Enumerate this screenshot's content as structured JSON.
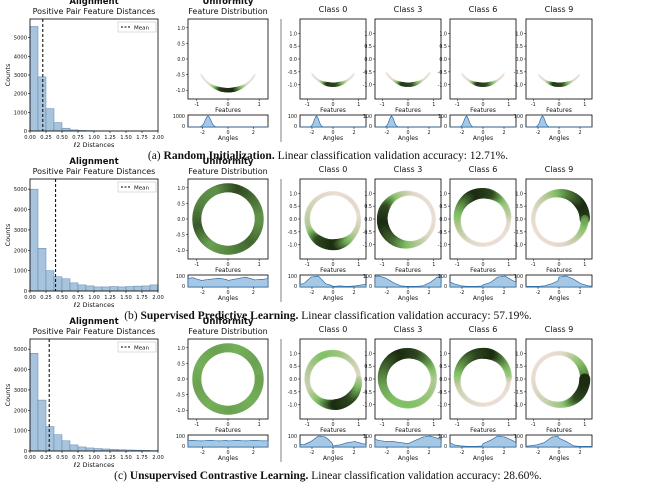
{
  "chart_data": [
    {
      "type": "figure-row",
      "alignment": {
        "title": "Alignment",
        "subtitle": "Positive Pair Feature Distances",
        "xlabel": "ℓ2 Distances",
        "ylabel": "Counts",
        "legend": "Mean",
        "mean": 0.2,
        "bin_width": 0.125,
        "counts": [
          5600,
          2900,
          1200,
          450,
          150,
          60,
          30,
          20,
          10,
          10,
          5,
          5,
          5,
          5,
          5,
          5
        ],
        "xlim": [
          0,
          2
        ],
        "ylim": [
          0,
          6000
        ],
        "xticks": [
          "0.00",
          "0.25",
          "0.50",
          "0.75",
          "1.00",
          "1.25",
          "1.50",
          "1.75",
          "2.00"
        ],
        "yticks": [
          "0",
          "1000",
          "2000",
          "3000",
          "4000",
          "5000"
        ]
      },
      "uniformity": {
        "title": "Uniformity",
        "subtitle": "Feature Distribution",
        "kde_max": "1000",
        "arc": {
          "start_deg": 210,
          "end_deg": 330
        },
        "density": [
          0.02,
          0.1,
          0.95,
          1.0,
          0.1,
          0.02
        ]
      },
      "classes": [
        {
          "label": "Class 0",
          "arc": {
            "start_deg": 215,
            "end_deg": 325
          },
          "density": [
            0.02,
            0.1,
            0.95,
            0.9,
            0.1,
            0.02
          ]
        },
        {
          "label": "Class 3",
          "arc": {
            "start_deg": 212,
            "end_deg": 328
          },
          "density": [
            0.02,
            0.1,
            0.95,
            0.9,
            0.1,
            0.02
          ]
        },
        {
          "label": "Class 6",
          "arc": {
            "start_deg": 215,
            "end_deg": 325
          },
          "density": [
            0.02,
            0.1,
            0.95,
            0.9,
            0.1,
            0.02
          ]
        },
        {
          "label": "Class 9",
          "arc": {
            "start_deg": 218,
            "end_deg": 322
          },
          "density": [
            0.02,
            0.1,
            0.95,
            0.9,
            0.1,
            0.02
          ]
        }
      ],
      "class_kde_max": "100",
      "caption": {
        "prefix": "(a) ",
        "bold": "Random Initialization.",
        "text": " Linear classification validation accuracy: 12.71%."
      }
    },
    {
      "type": "figure-row",
      "alignment": {
        "title": "Alignment",
        "subtitle": "Positive Pair Feature Distances",
        "xlabel": "ℓ2 Distances",
        "ylabel": "Counts",
        "legend": "Mean",
        "mean": 0.4,
        "bin_width": 0.125,
        "counts": [
          5000,
          2100,
          1000,
          700,
          600,
          400,
          300,
          250,
          200,
          200,
          220,
          200,
          220,
          240,
          250,
          300
        ],
        "xlim": [
          0,
          2
        ],
        "ylim": [
          0,
          5500
        ],
        "xticks": [
          "0.00",
          "0.25",
          "0.50",
          "0.75",
          "1.00",
          "1.25",
          "1.50",
          "1.75",
          "2.00"
        ],
        "yticks": [
          "0",
          "1000",
          "2000",
          "3000",
          "4000",
          "5000"
        ]
      },
      "uniformity": {
        "title": "Uniformity",
        "subtitle": "Feature Distribution",
        "kde_max": "100",
        "arc": {
          "start_deg": 0,
          "end_deg": 360
        },
        "density": [
          0.6,
          0.75,
          0.9,
          0.65,
          0.7,
          0.85,
          0.6,
          0.7,
          0.8,
          0.65
        ]
      },
      "classes": [
        {
          "label": "Class 0",
          "arc": {
            "start_deg": 0,
            "end_deg": 360
          },
          "density": [
            0.05,
            0.1,
            0.05,
            0.1,
            0.2,
            0.3,
            0.9,
            1.0,
            0.3,
            0.1
          ]
        },
        {
          "label": "Class 3",
          "arc": {
            "start_deg": 0,
            "end_deg": 360
          },
          "density": [
            0.05,
            0.05,
            0.1,
            0.4,
            0.9,
            1.0,
            0.8,
            0.4,
            0.1,
            0.05
          ]
        },
        {
          "label": "Class 6",
          "arc": {
            "start_deg": 0,
            "end_deg": 360
          },
          "density": [
            0.2,
            0.4,
            0.9,
            1.0,
            0.6,
            0.3,
            0.1,
            0.05,
            0.05,
            0.1
          ]
        },
        {
          "label": "Class 9",
          "arc": {
            "start_deg": 0,
            "end_deg": 360
          },
          "density": [
            0.9,
            1.0,
            0.7,
            0.3,
            0.1,
            0.05,
            0.05,
            0.1,
            0.3,
            0.6
          ]
        }
      ],
      "class_kde_max": "100",
      "caption": {
        "prefix": "(b) ",
        "bold": "Supervised Predictive Learning.",
        "text": " Linear classification validation accuracy: 57.19%."
      }
    },
    {
      "type": "figure-row",
      "alignment": {
        "title": "Alignment",
        "subtitle": "Positive Pair Feature Distances",
        "xlabel": "ℓ2 Distances",
        "ylabel": "Counts",
        "legend": "Mean",
        "mean": 0.3,
        "bin_width": 0.125,
        "counts": [
          4800,
          2500,
          1200,
          800,
          500,
          300,
          200,
          150,
          120,
          100,
          80,
          60,
          50,
          40,
          30,
          20
        ],
        "xlim": [
          0,
          2
        ],
        "ylim": [
          0,
          5500
        ],
        "xticks": [
          "0.00",
          "0.25",
          "0.50",
          "0.75",
          "1.00",
          "1.25",
          "1.50",
          "1.75",
          "2.00"
        ],
        "yticks": [
          "0",
          "1000",
          "2000",
          "3000",
          "4000",
          "5000"
        ]
      },
      "uniformity": {
        "title": "Uniformity",
        "subtitle": "Feature Distribution",
        "kde_max": "100",
        "arc": {
          "start_deg": 0,
          "end_deg": 360
        },
        "density": [
          0.55,
          0.6,
          0.55,
          0.6,
          0.55,
          0.6,
          0.55,
          0.6,
          0.55,
          0.6
        ]
      },
      "classes": [
        {
          "label": "Class 0",
          "arc": {
            "start_deg": 0,
            "end_deg": 360
          },
          "density": [
            0.1,
            0.2,
            0.4,
            0.5,
            0.3,
            0.2,
            0.5,
            1.0,
            0.9,
            0.3
          ]
        },
        {
          "label": "Class 3",
          "arc": {
            "start_deg": 0,
            "end_deg": 360
          },
          "density": [
            0.3,
            0.6,
            0.9,
            1.0,
            0.8,
            0.6,
            0.5,
            0.5,
            0.4,
            0.3
          ]
        },
        {
          "label": "Class 6",
          "arc": {
            "start_deg": 0,
            "end_deg": 360
          },
          "density": [
            0.3,
            0.6,
            1.0,
            0.9,
            0.6,
            0.2,
            0.1,
            0.05,
            0.05,
            0.1
          ]
        },
        {
          "label": "Class 9",
          "arc": {
            "start_deg": 0,
            "end_deg": 360
          },
          "density": [
            0.8,
            0.5,
            0.1,
            0.05,
            0.05,
            0.1,
            0.2,
            0.4,
            0.9,
            1.0
          ]
        }
      ],
      "class_kde_max": "100",
      "caption": {
        "prefix": "(c) ",
        "bold": "Unsupervised Contrastive Learning.",
        "text": " Linear classification validation accuracy: 28.60%."
      }
    }
  ],
  "axis_text": {
    "features": "Features",
    "angles": "Angles",
    "circle_yticks": [
      "1.0",
      "0.5",
      "0.0",
      "-0.5",
      "-1.0"
    ],
    "circle_xticks": [
      "-1",
      "0",
      "1"
    ],
    "angle_xticks": [
      "-2",
      "0",
      "2"
    ]
  },
  "colors": {
    "hist_fill": "#a8c4dd",
    "hist_edge": "#5b86b0",
    "kde_fill": "#a6c8e4",
    "kde_line": "#2f6ea6",
    "density_low": "#e9c9c3",
    "density_mid": "#7fbf62",
    "density_high": "#1a2a10"
  }
}
